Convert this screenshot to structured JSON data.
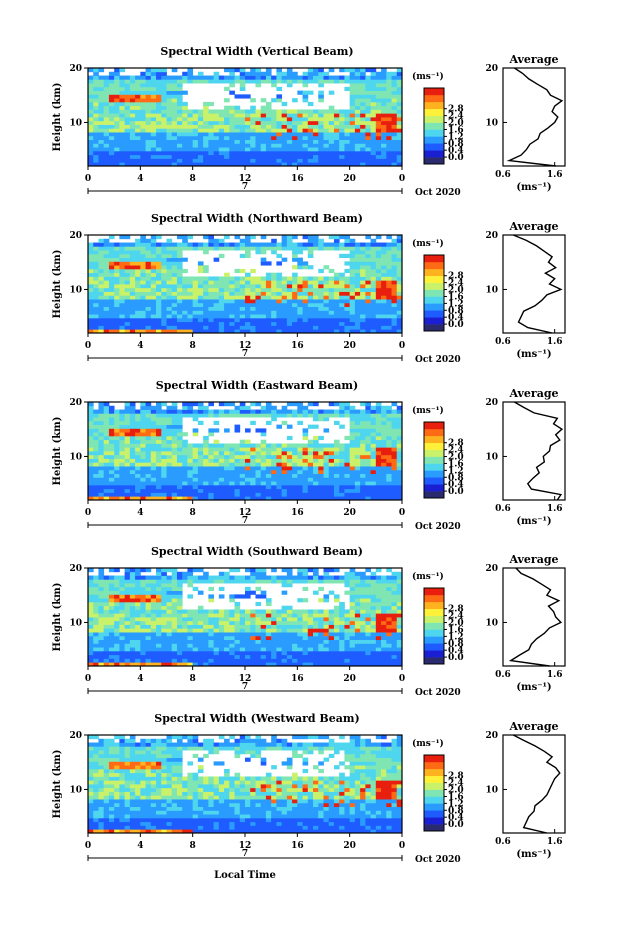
{
  "figure": {
    "xlabel": "Local Time",
    "ylabel": "Height (km)",
    "date_label": "Oct 2020",
    "day_label": "7",
    "unit_label": "(ms⁻¹)",
    "avg_title": "Average",
    "avg_xlabel": "(ms⁻¹)",
    "colorbar_ticks": [
      "0.0",
      "0.4",
      "0.8",
      "1.2",
      "1.6",
      "2.0",
      "2.4",
      "2.8"
    ],
    "colorbar_colors": [
      "#2a2a6e",
      "#1a1fd1",
      "#1f5cff",
      "#2a9cff",
      "#4fd6ef",
      "#7fe6b3",
      "#c9f26a",
      "#fff13a",
      "#ffb21f",
      "#ff6a14",
      "#e81e0e"
    ]
  },
  "chart_data": [
    {
      "type": "heatmap",
      "title": "Spectral Width (Vertical Beam)",
      "x_range": [
        0,
        24
      ],
      "y_range": [
        2,
        20
      ],
      "x_ticks": [
        "0",
        "4",
        "8",
        "12",
        "16",
        "20",
        "0"
      ],
      "y_ticks": [
        "20",
        "10"
      ],
      "colorbar_range": [
        0.0,
        3.0
      ],
      "average_profile": {
        "title": "Average",
        "x_ticks": [
          "0.6",
          "1.6"
        ],
        "y_ticks": [
          "20",
          "10"
        ],
        "x_range": [
          0.6,
          1.8
        ],
        "heights": [
          2,
          3,
          4,
          5,
          6,
          7,
          8,
          9,
          10,
          11,
          12,
          13,
          14,
          15,
          16,
          17,
          18,
          19,
          20
        ],
        "values": [
          1.62,
          0.72,
          0.95,
          1.05,
          1.12,
          1.28,
          1.32,
          1.47,
          1.6,
          1.66,
          1.55,
          1.6,
          1.74,
          1.52,
          1.45,
          1.27,
          1.1,
          0.98,
          0.82
        ]
      }
    },
    {
      "type": "heatmap",
      "title": "Spectral Width (Northward Beam)",
      "x_range": [
        0,
        24
      ],
      "y_range": [
        2,
        20
      ],
      "x_ticks": [
        "0",
        "4",
        "8",
        "12",
        "16",
        "20",
        "0"
      ],
      "y_ticks": [
        "20",
        "10"
      ],
      "colorbar_range": [
        0.0,
        3.0
      ],
      "average_profile": {
        "title": "Average",
        "x_ticks": [
          "0.6",
          "1.6"
        ],
        "y_ticks": [
          "20",
          "10"
        ],
        "x_range": [
          0.6,
          1.8
        ],
        "heights": [
          2,
          3,
          4,
          5,
          6,
          7,
          8,
          9,
          10,
          11,
          12,
          13,
          14,
          15,
          16,
          17,
          18,
          19,
          20
        ],
        "values": [
          1.55,
          1.08,
          0.9,
          0.95,
          1.0,
          1.22,
          1.35,
          1.45,
          1.72,
          1.5,
          1.6,
          1.42,
          1.62,
          1.48,
          1.55,
          1.4,
          1.25,
          1.05,
          0.8
        ]
      }
    },
    {
      "type": "heatmap",
      "title": "Spectral Width (Eastward Beam)",
      "x_range": [
        0,
        24
      ],
      "y_range": [
        2,
        20
      ],
      "x_ticks": [
        "0",
        "4",
        "8",
        "12",
        "16",
        "20",
        "0"
      ],
      "y_ticks": [
        "20",
        "10"
      ],
      "colorbar_range": [
        0.0,
        3.0
      ],
      "average_profile": {
        "title": "Average",
        "x_ticks": [
          "0.6",
          "1.6"
        ],
        "y_ticks": [
          "20",
          "10"
        ],
        "x_range": [
          0.6,
          1.8
        ],
        "heights": [
          2,
          3,
          4,
          5,
          6,
          7,
          8,
          9,
          10,
          11,
          12,
          13,
          14,
          15,
          16,
          17,
          18,
          19,
          20
        ],
        "values": [
          1.65,
          1.72,
          1.15,
          1.08,
          1.18,
          1.3,
          1.25,
          1.4,
          1.38,
          1.5,
          1.52,
          1.7,
          1.62,
          1.74,
          1.58,
          1.65,
          1.2,
          1.0,
          0.82
        ]
      }
    },
    {
      "type": "heatmap",
      "title": "Spectral Width (Southward Beam)",
      "x_range": [
        0,
        24
      ],
      "y_range": [
        2,
        20
      ],
      "x_ticks": [
        "0",
        "4",
        "8",
        "12",
        "16",
        "20",
        "0"
      ],
      "y_ticks": [
        "20",
        "10"
      ],
      "colorbar_range": [
        0.0,
        3.0
      ],
      "average_profile": {
        "title": "Average",
        "x_ticks": [
          "0.6",
          "1.6"
        ],
        "y_ticks": [
          "20",
          "10"
        ],
        "x_range": [
          0.6,
          1.8
        ],
        "heights": [
          2,
          3,
          4,
          5,
          6,
          7,
          8,
          9,
          10,
          11,
          12,
          13,
          14,
          15,
          16,
          17,
          18,
          19,
          20
        ],
        "values": [
          1.5,
          0.75,
          0.92,
          1.1,
          1.15,
          1.25,
          1.4,
          1.5,
          1.72,
          1.62,
          1.58,
          1.48,
          1.68,
          1.45,
          1.52,
          1.35,
          1.18,
          0.95,
          0.85
        ]
      }
    },
    {
      "type": "heatmap",
      "title": "Spectral Width (Westward Beam)",
      "x_range": [
        0,
        24
      ],
      "y_range": [
        2,
        20
      ],
      "x_ticks": [
        "0",
        "4",
        "8",
        "12",
        "16",
        "20",
        "0"
      ],
      "y_ticks": [
        "20",
        "10"
      ],
      "colorbar_range": [
        0.0,
        3.0
      ],
      "average_profile": {
        "title": "Average",
        "x_ticks": [
          "0.6",
          "1.6"
        ],
        "y_ticks": [
          "20",
          "10"
        ],
        "x_range": [
          0.6,
          1.8
        ],
        "heights": [
          2,
          3,
          4,
          5,
          6,
          7,
          8,
          9,
          10,
          11,
          12,
          13,
          14,
          15,
          16,
          17,
          18,
          19,
          20
        ],
        "values": [
          1.45,
          1.0,
          1.05,
          1.1,
          1.2,
          1.22,
          1.35,
          1.45,
          1.5,
          1.55,
          1.6,
          1.7,
          1.62,
          1.45,
          1.55,
          1.4,
          1.22,
          1.0,
          0.8
        ]
      }
    }
  ]
}
